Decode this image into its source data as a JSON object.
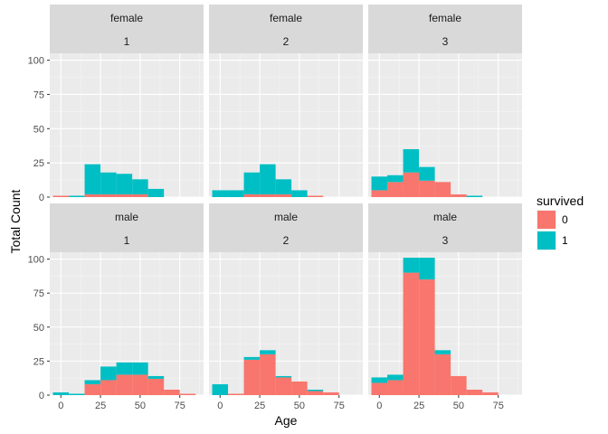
{
  "chart_data": {
    "type": "bar",
    "subtype": "stacked-histogram-facet-grid",
    "xlabel": "Age",
    "ylabel": "Total Count",
    "x_ticks": [
      0,
      25,
      50,
      75
    ],
    "y_ticks": [
      0,
      25,
      50,
      75,
      100
    ],
    "xlim": [
      -7,
      90
    ],
    "ylim": [
      0,
      105
    ],
    "bin_width": 10,
    "bins": [
      [
        -5,
        5
      ],
      [
        5,
        15
      ],
      [
        15,
        25
      ],
      [
        25,
        35
      ],
      [
        35,
        45
      ],
      [
        45,
        55
      ],
      [
        55,
        65
      ],
      [
        65,
        75
      ],
      [
        75,
        85
      ]
    ],
    "grid": true,
    "legend": {
      "title": "survived",
      "position": "right",
      "entries": [
        "0",
        "1"
      ]
    },
    "series_colors": {
      "0": "#F8766D",
      "1": "#00BFC4"
    },
    "panels": [
      {
        "sex": "female",
        "pclass": "1",
        "died": [
          1,
          0,
          2,
          2,
          2,
          2,
          0,
          0,
          0
        ],
        "survived": [
          0,
          1,
          22,
          16,
          15,
          11,
          6,
          0,
          0
        ]
      },
      {
        "sex": "female",
        "pclass": "2",
        "died": [
          0,
          0,
          2,
          2,
          2,
          0,
          1,
          0,
          0
        ],
        "survived": [
          5,
          5,
          16,
          22,
          11,
          5,
          0,
          0,
          0
        ]
      },
      {
        "sex": "female",
        "pclass": "3",
        "died": [
          5,
          11,
          18,
          12,
          11,
          2,
          0,
          0,
          0
        ],
        "survived": [
          10,
          5,
          17,
          10,
          0,
          0,
          1,
          0,
          0
        ]
      },
      {
        "sex": "male",
        "pclass": "1",
        "died": [
          0,
          0,
          8,
          11,
          15,
          15,
          12,
          4,
          1
        ],
        "survived": [
          2,
          1,
          3,
          10,
          9,
          9,
          2,
          0,
          0
        ]
      },
      {
        "sex": "male",
        "pclass": "2",
        "died": [
          0,
          1,
          26,
          30,
          13,
          10,
          3,
          2,
          0
        ],
        "survived": [
          8,
          0,
          2,
          3,
          1,
          0,
          1,
          0,
          0
        ]
      },
      {
        "sex": "male",
        "pclass": "3",
        "died": [
          9,
          11,
          90,
          85,
          30,
          14,
          4,
          2,
          0
        ],
        "survived": [
          4,
          4,
          11,
          16,
          3,
          0,
          0,
          0,
          0
        ]
      }
    ]
  }
}
